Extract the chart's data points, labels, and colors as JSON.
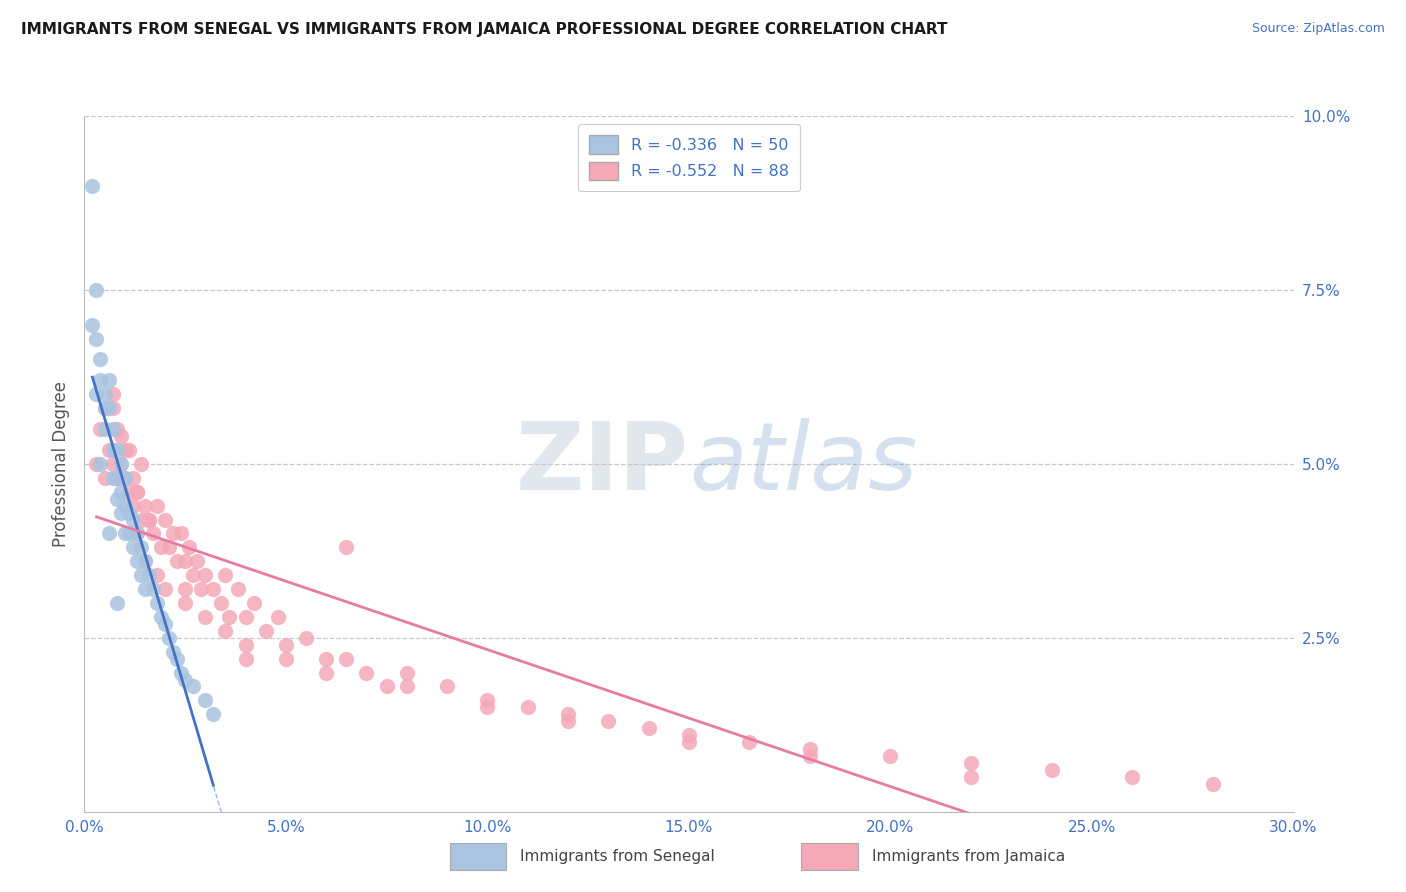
{
  "title": "IMMIGRANTS FROM SENEGAL VS IMMIGRANTS FROM JAMAICA PROFESSIONAL DEGREE CORRELATION CHART",
  "source": "Source: ZipAtlas.com",
  "ylabel": "Professional Degree",
  "legend_label1": "Immigrants from Senegal",
  "legend_label2": "Immigrants from Jamaica",
  "r1": -0.336,
  "n1": 50,
  "r2": -0.552,
  "n2": 88,
  "xlim": [
    0.0,
    0.3
  ],
  "ylim": [
    0.0,
    0.1
  ],
  "xticks": [
    0.0,
    0.05,
    0.1,
    0.15,
    0.2,
    0.25,
    0.3
  ],
  "xticklabels": [
    "0.0%",
    "5.0%",
    "10.0%",
    "15.0%",
    "20.0%",
    "25.0%",
    "30.0%"
  ],
  "ytick_right_labels": [
    "",
    "2.5%",
    "5.0%",
    "7.5%",
    "10.0%"
  ],
  "yticks_right": [
    0.0,
    0.025,
    0.05,
    0.075,
    0.1
  ],
  "color_senegal": "#a8c4e0",
  "color_jamaica": "#f4a8b8",
  "line_color_senegal": "#4472c4",
  "line_color_jamaica": "#e87ca0",
  "background_color": "#ffffff",
  "grid_color": "#c8c8c8",
  "senegal_x": [
    0.002,
    0.003,
    0.003,
    0.004,
    0.004,
    0.005,
    0.005,
    0.005,
    0.006,
    0.006,
    0.007,
    0.007,
    0.007,
    0.008,
    0.008,
    0.008,
    0.009,
    0.009,
    0.009,
    0.01,
    0.01,
    0.01,
    0.011,
    0.011,
    0.012,
    0.012,
    0.013,
    0.013,
    0.014,
    0.014,
    0.015,
    0.015,
    0.016,
    0.017,
    0.018,
    0.019,
    0.02,
    0.021,
    0.022,
    0.023,
    0.024,
    0.025,
    0.027,
    0.03,
    0.032,
    0.002,
    0.003,
    0.004,
    0.006,
    0.008
  ],
  "senegal_y": [
    0.09,
    0.075,
    0.068,
    0.065,
    0.062,
    0.06,
    0.058,
    0.055,
    0.062,
    0.058,
    0.055,
    0.052,
    0.048,
    0.052,
    0.048,
    0.045,
    0.05,
    0.046,
    0.043,
    0.048,
    0.044,
    0.04,
    0.043,
    0.04,
    0.042,
    0.038,
    0.04,
    0.036,
    0.038,
    0.034,
    0.036,
    0.032,
    0.034,
    0.032,
    0.03,
    0.028,
    0.027,
    0.025,
    0.023,
    0.022,
    0.02,
    0.019,
    0.018,
    0.016,
    0.014,
    0.07,
    0.06,
    0.05,
    0.04,
    0.03
  ],
  "jamaica_x": [
    0.003,
    0.004,
    0.005,
    0.005,
    0.006,
    0.007,
    0.007,
    0.008,
    0.008,
    0.009,
    0.01,
    0.01,
    0.011,
    0.012,
    0.012,
    0.013,
    0.014,
    0.014,
    0.015,
    0.016,
    0.017,
    0.018,
    0.019,
    0.02,
    0.021,
    0.022,
    0.023,
    0.024,
    0.025,
    0.026,
    0.027,
    0.028,
    0.029,
    0.03,
    0.032,
    0.034,
    0.035,
    0.036,
    0.038,
    0.04,
    0.042,
    0.045,
    0.048,
    0.05,
    0.055,
    0.06,
    0.065,
    0.07,
    0.075,
    0.08,
    0.09,
    0.1,
    0.11,
    0.12,
    0.13,
    0.14,
    0.15,
    0.165,
    0.18,
    0.2,
    0.22,
    0.24,
    0.26,
    0.28,
    0.013,
    0.015,
    0.018,
    0.02,
    0.025,
    0.03,
    0.035,
    0.04,
    0.05,
    0.06,
    0.08,
    0.1,
    0.12,
    0.15,
    0.18,
    0.22,
    0.007,
    0.009,
    0.011,
    0.013,
    0.016,
    0.025,
    0.04,
    0.065
  ],
  "jamaica_y": [
    0.05,
    0.055,
    0.048,
    0.058,
    0.052,
    0.05,
    0.058,
    0.048,
    0.055,
    0.05,
    0.052,
    0.048,
    0.046,
    0.048,
    0.044,
    0.046,
    0.05,
    0.042,
    0.044,
    0.042,
    0.04,
    0.044,
    0.038,
    0.042,
    0.038,
    0.04,
    0.036,
    0.04,
    0.036,
    0.038,
    0.034,
    0.036,
    0.032,
    0.034,
    0.032,
    0.03,
    0.034,
    0.028,
    0.032,
    0.028,
    0.03,
    0.026,
    0.028,
    0.024,
    0.025,
    0.022,
    0.022,
    0.02,
    0.018,
    0.02,
    0.018,
    0.016,
    0.015,
    0.014,
    0.013,
    0.012,
    0.011,
    0.01,
    0.009,
    0.008,
    0.007,
    0.006,
    0.005,
    0.004,
    0.04,
    0.036,
    0.034,
    0.032,
    0.03,
    0.028,
    0.026,
    0.024,
    0.022,
    0.02,
    0.018,
    0.015,
    0.013,
    0.01,
    0.008,
    0.005,
    0.06,
    0.054,
    0.052,
    0.046,
    0.042,
    0.032,
    0.022,
    0.038
  ]
}
